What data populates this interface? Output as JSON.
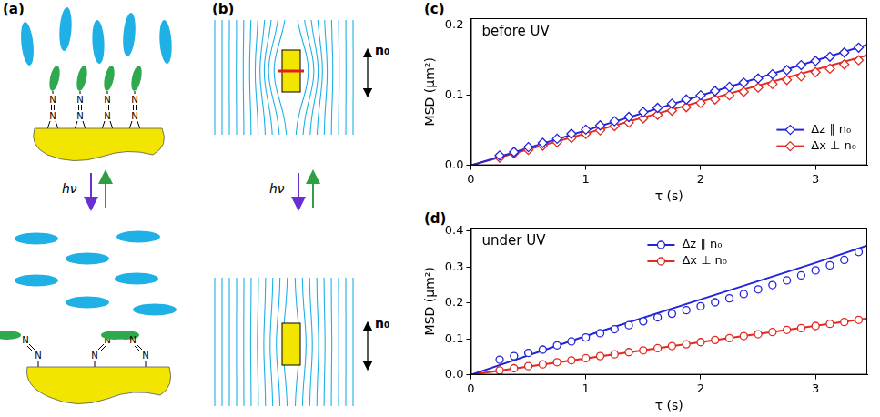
{
  "diagrams": [
    {
      "panel": "(a)",
      "atom_label": "N",
      "light_label": "hν"
    },
    {
      "panel": "(b)",
      "light_label": "hν",
      "director_label": "n₀"
    }
  ],
  "chart_data": [
    {
      "panel": "(c)",
      "type": "scatter",
      "annotation": "before UV",
      "x_label": "τ (s)",
      "y_label": "MSD (μm²)",
      "x": [
        0.25,
        0.375,
        0.5,
        0.625,
        0.75,
        0.875,
        1.0,
        1.125,
        1.25,
        1.375,
        1.5,
        1.625,
        1.75,
        1.875,
        2.0,
        2.125,
        2.25,
        2.375,
        2.5,
        2.625,
        2.75,
        2.875,
        3.0,
        3.125,
        3.25,
        3.375
      ],
      "xlim": [
        0,
        3.45
      ],
      "xticks": [
        0,
        1,
        2,
        3
      ],
      "ylim": [
        0,
        0.21
      ],
      "yticks": [
        {
          "value": 0,
          "label": "0.0"
        },
        0.1,
        0.2
      ],
      "grid": false,
      "legend": "lower right",
      "series": [
        {
          "name": "Δz ∥ n₀",
          "color": "#2323d8",
          "marker": "diamond",
          "line_style": "solid",
          "values": [
            0.014,
            0.019,
            0.026,
            0.032,
            0.038,
            0.045,
            0.051,
            0.057,
            0.063,
            0.069,
            0.076,
            0.082,
            0.088,
            0.094,
            0.1,
            0.106,
            0.112,
            0.118,
            0.124,
            0.13,
            0.136,
            0.143,
            0.149,
            0.155,
            0.161,
            0.168
          ],
          "fit": {
            "x": [
              0,
              3.45
            ],
            "values": [
              0,
              0.172
            ]
          }
        },
        {
          "name": "Δx ⊥ n₀",
          "color": "#e02a22",
          "marker": "diamond",
          "line_style": "solid",
          "values": [
            0.011,
            0.017,
            0.022,
            0.028,
            0.033,
            0.039,
            0.045,
            0.05,
            0.056,
            0.061,
            0.067,
            0.072,
            0.078,
            0.083,
            0.089,
            0.094,
            0.1,
            0.105,
            0.111,
            0.116,
            0.122,
            0.127,
            0.133,
            0.138,
            0.144,
            0.15
          ],
          "fit": {
            "x": [
              0,
              3.45
            ],
            "values": [
              0,
              0.157
            ]
          }
        }
      ]
    },
    {
      "panel": "(d)",
      "type": "scatter",
      "annotation": "under UV",
      "x_label": "τ (s)",
      "y_label": "MSD (μm²)",
      "x": [
        0.25,
        0.375,
        0.5,
        0.625,
        0.75,
        0.875,
        1.0,
        1.125,
        1.25,
        1.375,
        1.5,
        1.625,
        1.75,
        1.875,
        2.0,
        2.125,
        2.25,
        2.375,
        2.5,
        2.625,
        2.75,
        2.875,
        3.0,
        3.125,
        3.25,
        3.375
      ],
      "xlim": [
        0,
        3.45
      ],
      "xticks": [
        0,
        1,
        2,
        3
      ],
      "ylim": [
        0,
        0.41
      ],
      "yticks": [
        {
          "value": 0,
          "label": "0.0"
        },
        0.1,
        0.2,
        0.3,
        0.4
      ],
      "grid": false,
      "legend": "top",
      "series": [
        {
          "name": "Δz ∥ n₀",
          "color": "#2323d8",
          "marker": "circle",
          "line_style": "solid",
          "values": [
            0.042,
            0.052,
            0.061,
            0.07,
            0.082,
            0.093,
            0.104,
            0.116,
            0.127,
            0.138,
            0.149,
            0.16,
            0.17,
            0.18,
            0.191,
            0.202,
            0.213,
            0.225,
            0.238,
            0.25,
            0.263,
            0.277,
            0.291,
            0.305,
            0.32,
            0.342
          ],
          "fit": {
            "x": [
              0,
              1,
              2,
              3,
              3.45
            ],
            "values": [
              0,
              0.108,
              0.21,
              0.312,
              0.36
            ]
          }
        },
        {
          "name": "Δx ⊥ n₀",
          "color": "#e02a22",
          "marker": "circle",
          "line_style": "solid",
          "values": [
            0.012,
            0.018,
            0.024,
            0.029,
            0.035,
            0.04,
            0.046,
            0.052,
            0.057,
            0.063,
            0.068,
            0.074,
            0.08,
            0.085,
            0.091,
            0.097,
            0.102,
            0.108,
            0.113,
            0.119,
            0.125,
            0.13,
            0.136,
            0.142,
            0.147,
            0.153
          ],
          "fit": {
            "x": [
              0,
              3.45
            ],
            "values": [
              0,
              0.157
            ]
          }
        }
      ]
    }
  ]
}
